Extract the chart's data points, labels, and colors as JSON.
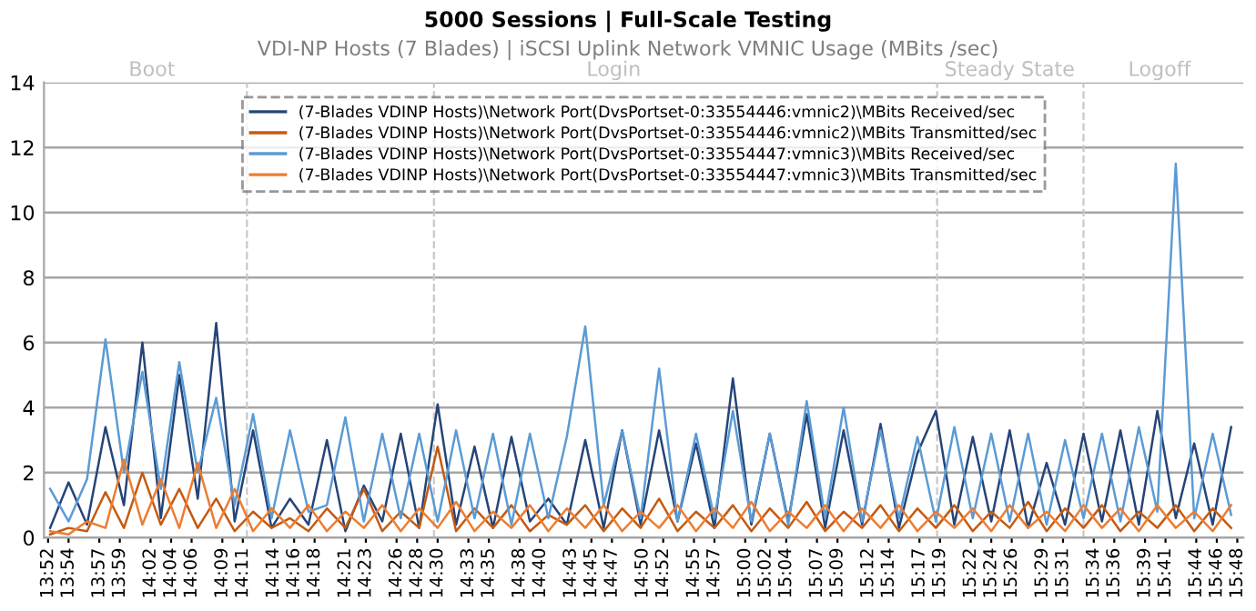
{
  "chart_data": {
    "type": "line",
    "title": "5000 Sessions | Full-Scale Testing",
    "subtitle": "VDI-NP Hosts (7 Blades) | iSCSI Uplink Network VMNIC Usage (MBits /sec)",
    "x": [
      13.87,
      13.9,
      13.93,
      13.96,
      13.99,
      14.02,
      14.05,
      14.08,
      14.11,
      14.14,
      14.17,
      14.2,
      14.23,
      14.26,
      14.29,
      14.32,
      14.35,
      14.38,
      14.41,
      14.44,
      14.47,
      14.5,
      14.53,
      14.56,
      14.59,
      14.62,
      14.65,
      14.68,
      14.71,
      14.74,
      14.77,
      14.8,
      14.83,
      14.86,
      14.89,
      14.92,
      14.95,
      14.98,
      15.01,
      15.04,
      15.07,
      15.1,
      15.13,
      15.16,
      15.19,
      15.22,
      15.25,
      15.28,
      15.31,
      15.34,
      15.37,
      15.4,
      15.43,
      15.46,
      15.49,
      15.52,
      15.55,
      15.58,
      15.61,
      15.64,
      15.67,
      15.7,
      15.73,
      15.76,
      15.79
    ],
    "series": [
      {
        "name": "(7-Blades VDINP Hosts)\\Network Port(DvsPortset-0:33554446:vmnic2)\\MBits Received/sec",
        "color": "#264478",
        "values": [
          0.3,
          1.7,
          0.4,
          3.4,
          1.0,
          6.0,
          0.6,
          5.0,
          1.2,
          6.6,
          0.5,
          3.3,
          0.3,
          1.2,
          0.4,
          3.0,
          0.2,
          1.6,
          0.5,
          3.2,
          0.3,
          4.1,
          0.4,
          2.8,
          0.3,
          3.1,
          0.5,
          1.2,
          0.4,
          3.0,
          0.3,
          3.3,
          0.4,
          3.3,
          0.5,
          2.9,
          0.3,
          4.9,
          0.4,
          3.2,
          0.5,
          3.8,
          0.3,
          3.3,
          0.4,
          3.5,
          0.3,
          2.6,
          3.9,
          0.4,
          3.1,
          0.5,
          3.3,
          0.3,
          2.3,
          0.4,
          3.2,
          0.5,
          3.3,
          0.4,
          3.9,
          0.6,
          2.9,
          0.4,
          3.4
        ]
      },
      {
        "name": "(7-Blades VDINP Hosts)\\Network Port(DvsPortset-0:33554446:vmnic2)\\MBits Transmitted/sec",
        "color": "#c55a11",
        "values": [
          0.1,
          0.3,
          0.2,
          1.4,
          0.3,
          2.0,
          0.4,
          1.5,
          0.3,
          1.2,
          0.2,
          0.8,
          0.3,
          0.6,
          0.2,
          0.9,
          0.3,
          1.5,
          0.2,
          0.8,
          0.3,
          2.8,
          0.2,
          0.9,
          0.3,
          1.0,
          0.2,
          0.7,
          0.4,
          1.0,
          0.2,
          0.9,
          0.3,
          1.2,
          0.2,
          0.8,
          0.3,
          1.0,
          0.2,
          0.9,
          0.3,
          1.1,
          0.2,
          0.8,
          0.3,
          1.0,
          0.2,
          0.9,
          0.3,
          1.0,
          0.2,
          0.8,
          0.3,
          1.1,
          0.2,
          0.9,
          0.3,
          1.0,
          0.2,
          0.8,
          0.3,
          1.0,
          0.2,
          0.9,
          0.3
        ]
      },
      {
        "name": "(7-Blades VDINP Hosts)\\Network Port(DvsPortset-0:33554447:vmnic3)\\MBits Received/sec",
        "color": "#5b9bd5",
        "values": [
          1.5,
          0.5,
          1.8,
          6.1,
          2.0,
          5.1,
          1.5,
          5.4,
          2.0,
          4.3,
          1.0,
          3.8,
          0.6,
          3.3,
          0.8,
          1.0,
          3.7,
          0.5,
          3.2,
          0.6,
          3.2,
          0.5,
          3.3,
          0.6,
          3.2,
          0.4,
          3.2,
          0.6,
          3.1,
          6.5,
          1.0,
          3.3,
          0.6,
          5.2,
          0.5,
          3.2,
          0.6,
          3.9,
          0.5,
          3.2,
          0.4,
          4.2,
          0.6,
          4.0,
          0.5,
          3.3,
          0.6,
          3.1,
          0.5,
          3.4,
          0.6,
          3.2,
          0.5,
          3.2,
          0.4,
          3.0,
          0.6,
          3.2,
          0.5,
          3.4,
          0.8,
          11.5,
          0.6,
          3.2,
          0.7
        ]
      },
      {
        "name": "(7-Blades VDINP Hosts)\\Network Port(DvsPortset-0:33554447:vmnic3)\\MBits Transmitted/sec",
        "color": "#ed7d31",
        "values": [
          0.2,
          0.1,
          0.5,
          0.3,
          2.4,
          0.4,
          1.8,
          0.3,
          2.3,
          0.3,
          1.5,
          0.2,
          0.9,
          0.3,
          1.0,
          0.2,
          0.8,
          0.3,
          1.0,
          0.2,
          0.9,
          0.3,
          1.1,
          0.2,
          0.8,
          0.3,
          1.0,
          0.2,
          0.9,
          0.3,
          1.0,
          0.2,
          0.8,
          0.3,
          1.0,
          0.2,
          0.9,
          0.3,
          1.1,
          0.2,
          0.8,
          0.3,
          1.0,
          0.2,
          0.9,
          0.3,
          1.0,
          0.2,
          0.8,
          0.3,
          0.9,
          0.2,
          1.0,
          0.3,
          0.8,
          0.2,
          1.0,
          0.3,
          0.9,
          0.2,
          1.0,
          0.3,
          0.8,
          0.2,
          1.0
        ]
      }
    ],
    "xlim": [
      13.86,
      15.81
    ],
    "ylim": [
      0,
      14
    ],
    "yticks": [
      0,
      2,
      4,
      6,
      8,
      10,
      12,
      14
    ],
    "xticks": [
      {
        "value": 13.8667,
        "label": "13:52"
      },
      {
        "value": 13.9,
        "label": "13:54"
      },
      {
        "value": 13.95,
        "label": "13:57"
      },
      {
        "value": 13.9833,
        "label": "13:59"
      },
      {
        "value": 14.0333,
        "label": "14:02"
      },
      {
        "value": 14.0667,
        "label": "14:04"
      },
      {
        "value": 14.1,
        "label": "14:06"
      },
      {
        "value": 14.15,
        "label": "14:09"
      },
      {
        "value": 14.1833,
        "label": "14:11"
      },
      {
        "value": 14.2333,
        "label": "14:14"
      },
      {
        "value": 14.2667,
        "label": "14:16"
      },
      {
        "value": 14.3,
        "label": "14:18"
      },
      {
        "value": 14.35,
        "label": "14:21"
      },
      {
        "value": 14.3833,
        "label": "14:23"
      },
      {
        "value": 14.4333,
        "label": "14:26"
      },
      {
        "value": 14.4667,
        "label": "14:28"
      },
      {
        "value": 14.5,
        "label": "14:30"
      },
      {
        "value": 14.55,
        "label": "14:33"
      },
      {
        "value": 14.5833,
        "label": "14:35"
      },
      {
        "value": 14.6333,
        "label": "14:38"
      },
      {
        "value": 14.6667,
        "label": "14:40"
      },
      {
        "value": 14.7167,
        "label": "14:43"
      },
      {
        "value": 14.75,
        "label": "14:45"
      },
      {
        "value": 14.7833,
        "label": "14:47"
      },
      {
        "value": 14.8333,
        "label": "14:50"
      },
      {
        "value": 14.8667,
        "label": "14:52"
      },
      {
        "value": 14.9167,
        "label": "14:55"
      },
      {
        "value": 14.95,
        "label": "14:57"
      },
      {
        "value": 15.0,
        "label": "15:00"
      },
      {
        "value": 15.0333,
        "label": "15:02"
      },
      {
        "value": 15.0667,
        "label": "15:04"
      },
      {
        "value": 15.1167,
        "label": "15:07"
      },
      {
        "value": 15.15,
        "label": "15:09"
      },
      {
        "value": 15.2,
        "label": "15:12"
      },
      {
        "value": 15.2333,
        "label": "15:14"
      },
      {
        "value": 15.2833,
        "label": "15:17"
      },
      {
        "value": 15.3167,
        "label": "15:19"
      },
      {
        "value": 15.3667,
        "label": "15:22"
      },
      {
        "value": 15.4,
        "label": "15:24"
      },
      {
        "value": 15.4333,
        "label": "15:26"
      },
      {
        "value": 15.4833,
        "label": "15:29"
      },
      {
        "value": 15.5167,
        "label": "15:31"
      },
      {
        "value": 15.5667,
        "label": "15:34"
      },
      {
        "value": 15.6,
        "label": "15:36"
      },
      {
        "value": 15.65,
        "label": "15:39"
      },
      {
        "value": 15.6833,
        "label": "15:41"
      },
      {
        "value": 15.7333,
        "label": "15:44"
      },
      {
        "value": 15.7667,
        "label": "15:46"
      },
      {
        "value": 15.8,
        "label": "15:48"
      }
    ],
    "ref_lines": [
      {
        "axis": "x",
        "value": 14.19,
        "label": null,
        "color": "#c8c8c8",
        "line_style": "dashed"
      },
      {
        "axis": "x",
        "value": 14.494,
        "label": null,
        "color": "#c8c8c8",
        "line_style": "dashed"
      },
      {
        "axis": "x",
        "value": 15.312,
        "label": null,
        "color": "#c8c8c8",
        "line_style": "dashed"
      },
      {
        "axis": "x",
        "value": 15.55,
        "label": null,
        "color": "#c8c8c8",
        "line_style": "dashed"
      }
    ],
    "annotations": [
      "Boot",
      "Login",
      "Steady State",
      "Logoff"
    ],
    "grid": "y",
    "legend": "top",
    "marker": "none",
    "line_style": "solid"
  }
}
